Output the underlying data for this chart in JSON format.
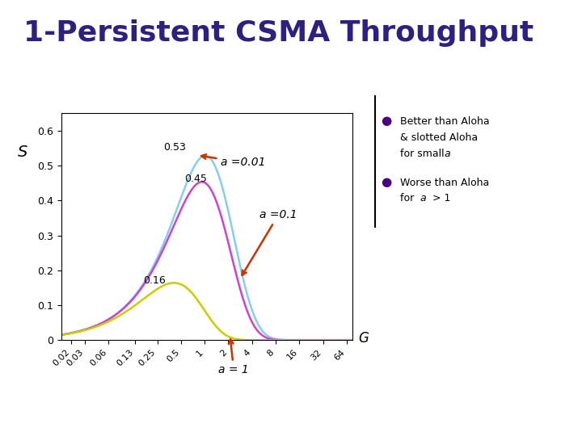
{
  "title": "1-Persistent CSMA Throughput",
  "title_color": "#2E2080",
  "title_fontsize": 26,
  "ylabel": "S",
  "xlabel": "G",
  "ylim": [
    0,
    0.65
  ],
  "yticks": [
    0,
    0.1,
    0.2,
    0.3,
    0.4,
    0.5,
    0.6
  ],
  "xtick_labels": [
    "0.02",
    "0.03",
    "0.06",
    "0.13",
    "0.25",
    "0.5",
    "1",
    "2",
    "4",
    "8",
    "16",
    "32",
    "64"
  ],
  "xtick_vals": [
    0.02,
    0.03,
    0.06,
    0.13,
    0.25,
    0.5,
    1,
    2,
    4,
    8,
    16,
    32,
    64
  ],
  "background_color": "#FFFFFF",
  "curve_a001_color": "#87CEEB",
  "curve_a01_color": "#CC44CC",
  "curve_a1_color": "#CCCC00",
  "annot_a001": "a =0.01",
  "annot_a01": "a =0.1",
  "annot_a1": "a = 1",
  "arrow_color": "#CC3300",
  "bullet_color": "#4B0082",
  "sep_line_color": "#000000"
}
